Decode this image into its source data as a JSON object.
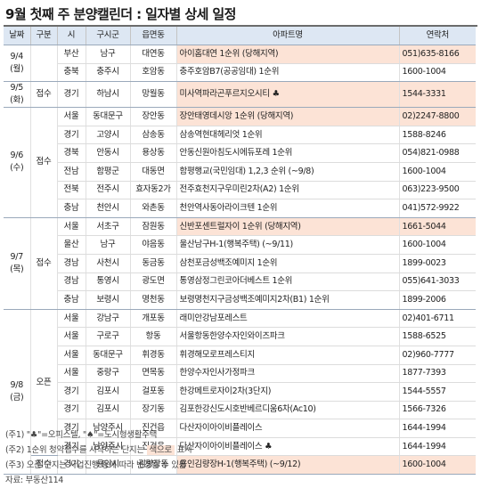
{
  "title": "9월 첫째 주 분양캘린더 : 일자별 상세 일정",
  "columns": [
    "날짜",
    "구분",
    "시",
    "구시군",
    "읍면동",
    "아파트명",
    "연락처"
  ],
  "groups": [
    {
      "date": "9/4\n(월)",
      "kind": "",
      "rows": [
        {
          "si": "부산",
          "gu": "남구",
          "dong": "대연동",
          "apt": "아이홈대연 1순위 (당해지역)",
          "tel": "051)635-8166",
          "hl": true
        },
        {
          "si": "충북",
          "gu": "충주시",
          "dong": "호암동",
          "apt": "충주호암B7(공공임대) 1순위",
          "tel": "1600-1004",
          "hl": false
        }
      ]
    },
    {
      "date": "9/5\n(화)",
      "kind": "접수",
      "rows": [
        {
          "si": "경기",
          "gu": "하남시",
          "dong": "망월동",
          "apt": "미사역파라곤푸르지오시티 ♣",
          "tel": "1544-3331",
          "hl": true
        }
      ]
    },
    {
      "date": "9/6\n(수)",
      "kind": "접수",
      "rows": [
        {
          "si": "서울",
          "gu": "동대문구",
          "dong": "장안동",
          "apt": "장안태영데시앙 1순위 (당해지역)",
          "tel": "02)2247-8800",
          "hl": true
        },
        {
          "si": "경기",
          "gu": "고양시",
          "dong": "삼송동",
          "apt": "삼송역현대헤리엇 1순위",
          "tel": "1588-8246",
          "hl": false
        },
        {
          "si": "경북",
          "gu": "안동시",
          "dong": "용상동",
          "apt": "안동신원아침도시에듀포레 1순위",
          "tel": "054)821-0988",
          "hl": false
        },
        {
          "si": "전남",
          "gu": "함평군",
          "dong": "대동면",
          "apt": "함평행교(국민임대) 1,2,3 순위 (~9/8)",
          "tel": "1600-1004",
          "hl": false
        },
        {
          "si": "전북",
          "gu": "전주시",
          "dong": "효자동2가",
          "apt": "전주효천지구우미린2차(A2) 1순위",
          "tel": "063)223-9500",
          "hl": false
        },
        {
          "si": "충남",
          "gu": "천안시",
          "dong": "와촌동",
          "apt": "천안역사동아라이크텐 1순위",
          "tel": "041)572-9922",
          "hl": false
        }
      ]
    },
    {
      "date": "9/7\n(목)",
      "kind": "접수",
      "rows": [
        {
          "si": "서울",
          "gu": "서초구",
          "dong": "잠원동",
          "apt": "신반포센트럴자이 1순위 (당해지역)",
          "tel": "1661-5044",
          "hl": true
        },
        {
          "si": "울산",
          "gu": "남구",
          "dong": "야음동",
          "apt": "울산남구H-1(행복주택) (~9/11)",
          "tel": "1600-1004",
          "hl": false
        },
        {
          "si": "경남",
          "gu": "사천시",
          "dong": "동금동",
          "apt": "삼천포금성백조예미지 1순위",
          "tel": "1899-0023",
          "hl": false
        },
        {
          "si": "경남",
          "gu": "통영시",
          "dong": "광도면",
          "apt": "통영삼정그린코아더베스트 1순위",
          "tel": "055)641-3033",
          "hl": false
        },
        {
          "si": "충남",
          "gu": "보령시",
          "dong": "명천동",
          "apt": "보령명천지구금성백조예미지2차(B1) 1순위",
          "tel": "1899-2006",
          "hl": false
        }
      ]
    },
    {
      "date": "9/8\n(금)",
      "kind": "오픈",
      "rows": [
        {
          "si": "서울",
          "gu": "강남구",
          "dong": "개포동",
          "apt": "래미안강남포레스트",
          "tel": "02)401-6711",
          "hl": false
        },
        {
          "si": "서울",
          "gu": "구로구",
          "dong": "항동",
          "apt": "서울항동한양수자인와이즈파크",
          "tel": "1588-6525",
          "hl": false
        },
        {
          "si": "서울",
          "gu": "동대문구",
          "dong": "휘경동",
          "apt": "휘경해모로프레스티지",
          "tel": "02)960-7777",
          "hl": false
        },
        {
          "si": "서울",
          "gu": "중랑구",
          "dong": "면목동",
          "apt": "한양수자인사가정파크",
          "tel": "1877-7393",
          "hl": false
        },
        {
          "si": "경기",
          "gu": "김포시",
          "dong": "걸포동",
          "apt": "한강메트로자이2차(3단지)",
          "tel": "1544-5557",
          "hl": false
        },
        {
          "si": "경기",
          "gu": "김포시",
          "dong": "장기동",
          "apt": "김포한강신도시호반베르디움6차(Ac10)",
          "tel": "1566-7326",
          "hl": false
        },
        {
          "si": "경기",
          "gu": "남양주시",
          "dong": "진건읍",
          "apt": "다산자이아이비플레이스",
          "tel": "1644-1994",
          "hl": false
        },
        {
          "si": "경기",
          "gu": "남양주시",
          "dong": "진건읍",
          "apt": "다산자이아이비플레이스 ♣",
          "tel": "1644-1994",
          "hl": false
        }
      ]
    }
  ],
  "last_row": {
    "kind": "접수",
    "si": "경기",
    "gu": "용인시",
    "dong": "김량장동",
    "apt": "용인김량장H-1(행복주택) (~9/12)",
    "tel": "1600-1004",
    "hl": true
  },
  "notes": {
    "note1": "(주1) \"♣\"=오피스텔, \"♠\"=도시형생활주택",
    "note2_a": "(주2) 1순위 청약접수를 시작하는 단지는 ",
    "note2_mark": "색으로",
    "note2_b": " 표시",
    "note3": "(주3) 오픈 단지는 사업진행 등에 따라 변경될 수 있음",
    "source": "자료: 부동산114"
  }
}
